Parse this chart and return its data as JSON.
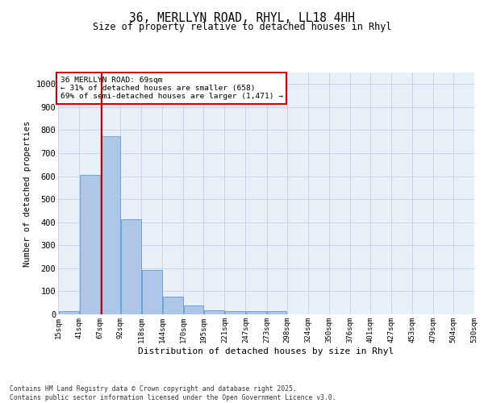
{
  "title1": "36, MERLLYN ROAD, RHYL, LL18 4HH",
  "title2": "Size of property relative to detached houses in Rhyl",
  "xlabel": "Distribution of detached houses by size in Rhyl",
  "ylabel": "Number of detached properties",
  "annotation_line1": "36 MERLLYN ROAD: 69sqm",
  "annotation_line2": "← 31% of detached houses are smaller (658)",
  "annotation_line3": "69% of semi-detached houses are larger (1,471) →",
  "property_size_sqm": 69,
  "bin_edges": [
    15,
    41,
    67,
    92,
    118,
    144,
    170,
    195,
    221,
    247,
    273,
    298,
    324,
    350,
    376,
    401,
    427,
    453,
    479,
    504,
    530
  ],
  "bar_values": [
    15,
    605,
    775,
    412,
    193,
    78,
    38,
    18,
    15,
    13,
    13,
    0,
    0,
    0,
    0,
    0,
    0,
    0,
    0,
    0
  ],
  "bar_color": "#aec6e8",
  "bar_edge_color": "#5b9bd5",
  "vline_color": "#cc0000",
  "vline_x": 69,
  "annotation_box_color": "#cc0000",
  "background_color": "#ffffff",
  "plot_bg_color": "#e8f0f8",
  "grid_color": "#c8d4e8",
  "ylim": [
    0,
    1050
  ],
  "yticks": [
    0,
    100,
    200,
    300,
    400,
    500,
    600,
    700,
    800,
    900,
    1000
  ],
  "footer_line1": "Contains HM Land Registry data © Crown copyright and database right 2025.",
  "footer_line2": "Contains public sector information licensed under the Open Government Licence v3.0."
}
